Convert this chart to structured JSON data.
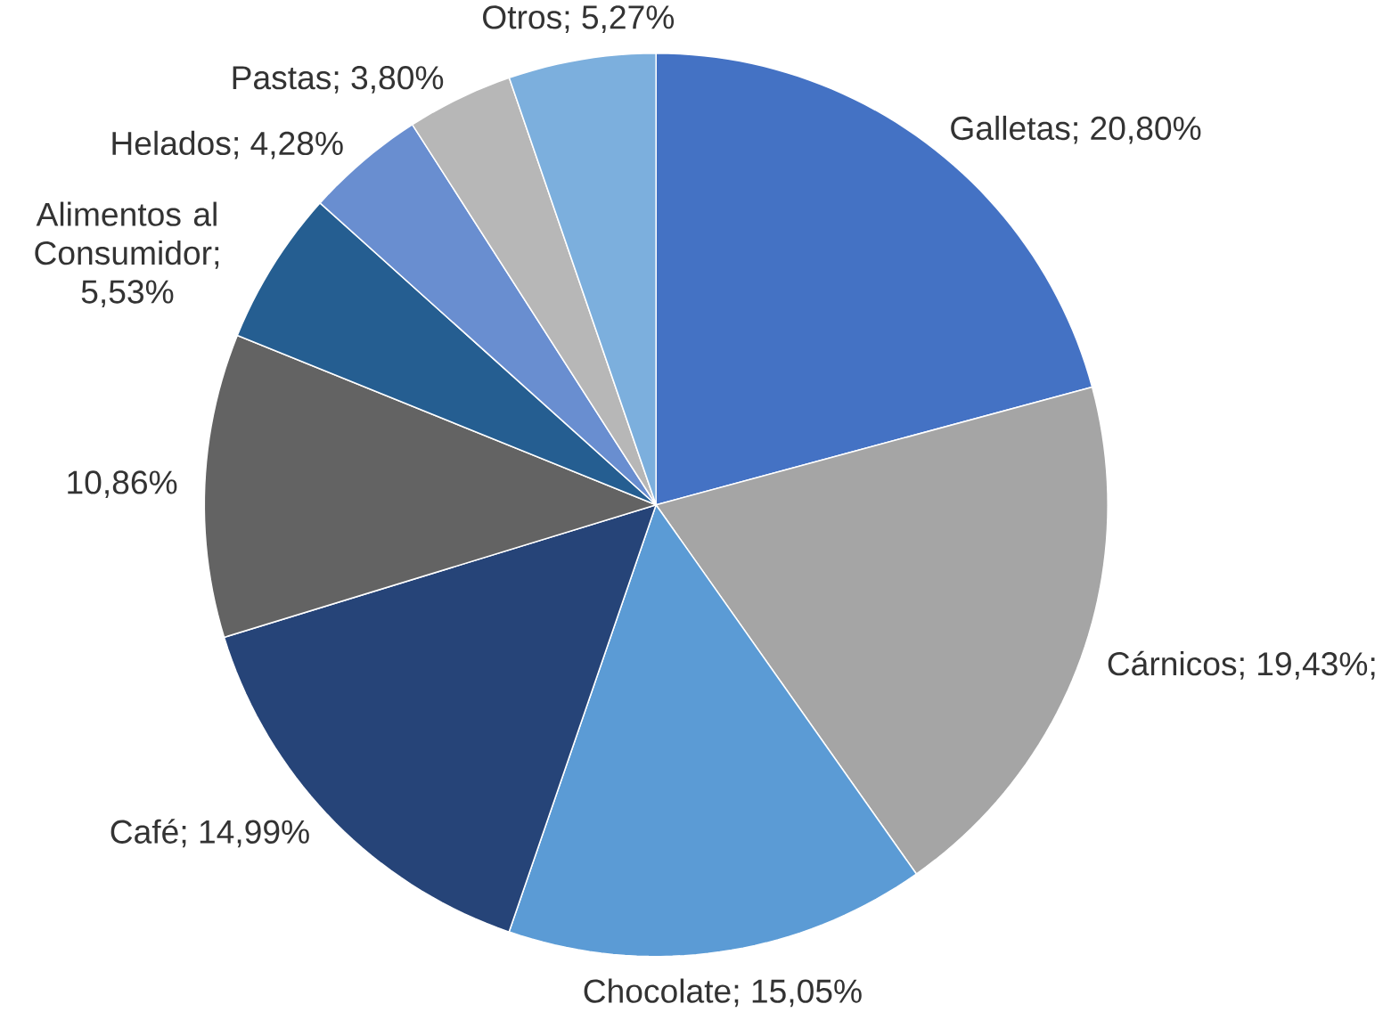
{
  "chart_data": {
    "type": "pie",
    "categories": [
      "Galletas",
      "Cárnicos",
      "Chocolate",
      "Café",
      null,
      "Alimentos al Consumidor",
      "Helados",
      "Pastas",
      "Otros"
    ],
    "values": [
      20.8,
      19.43,
      15.05,
      14.99,
      10.86,
      5.53,
      4.28,
      3.8,
      5.27
    ],
    "value_labels": [
      "; 20,80%",
      "; 19,43%;",
      "; 15,05%",
      "; 14,99%",
      "10,86%",
      "; 5,53%",
      "; 4,28%",
      "; 3,80%",
      "; 5,27%"
    ],
    "colors": [
      "#4472c4",
      "#a5a5a5",
      "#5b9bd5",
      "#264478",
      "#636363",
      "#255e91",
      "#698ed0",
      "#b7b7b7",
      "#7cafdd"
    ]
  }
}
